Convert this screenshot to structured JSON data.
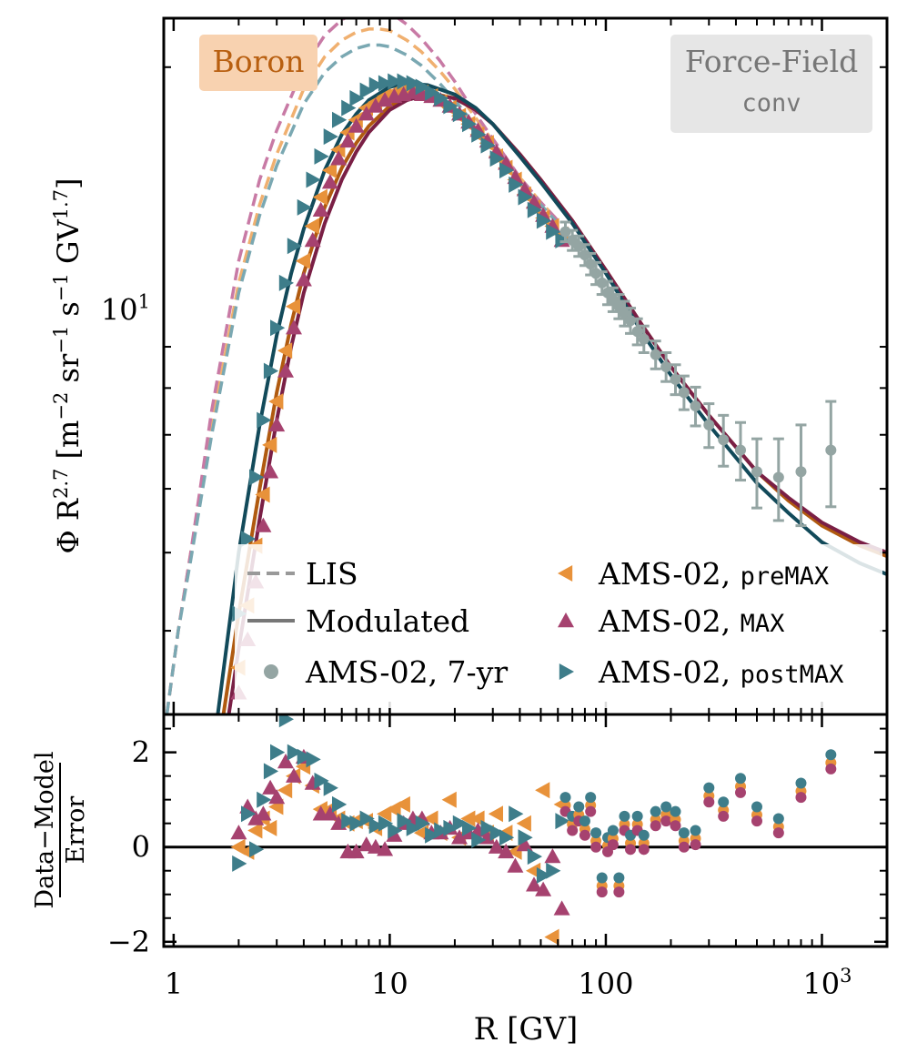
{
  "chart_data": {
    "type": "scatter",
    "element_badge": "Boron",
    "model_badge": {
      "line1": "Force-Field",
      "line2": "conv"
    },
    "xlabel": "R [GV]",
    "ylabel_top": "Φ R^2.7 [m^-2 sr^-1 s^-1 GV^1.7]",
    "ylabel_bottom": "(Data−Model)/Error",
    "xscale": "log",
    "xlim": [
      0.9,
      2000
    ],
    "top_ylim": [
      3.15,
      23.0
    ],
    "bottom_ylim": [
      -2.1,
      2.8
    ],
    "x_tick_labels": [
      {
        "value": 1,
        "label": "1"
      },
      {
        "value": 10,
        "label": "10"
      },
      {
        "value": 100,
        "label": "100"
      },
      {
        "value": 1000,
        "label": "10",
        "sup": "3"
      }
    ],
    "top_y_tick_labels": [
      {
        "value": 10,
        "label": "10",
        "sup": "1"
      }
    ],
    "bottom_y_tick_labels": [
      {
        "value": 2,
        "label": "2"
      },
      {
        "value": 0,
        "label": "0"
      },
      {
        "value": -2,
        "label": "−2"
      }
    ],
    "colors": {
      "lis_grey": "#999999",
      "model_grey": "#777777",
      "seven_year": "#94a5a3",
      "preMAX": "#e8923a",
      "MAX": "#a6426f",
      "postMAX": "#3e7d8a",
      "mod_preMAX": "#b05a10",
      "mod_MAX": "#7a1f45",
      "mod_postMAX": "#124a5a",
      "lis_preMAX": "#f0b070",
      "lis_MAX": "#c87aa5",
      "lis_postMAX": "#7aa8b2",
      "badge_boron_bg": "#f8d2b0",
      "badge_boron_text": "#b85f10",
      "badge_model_bg": "#e6e6e6",
      "badge_model_text": "#777777"
    },
    "legend": {
      "placement": "lower",
      "entries": [
        {
          "key": "lis",
          "label": "LIS"
        },
        {
          "key": "modulated",
          "label": "Modulated"
        },
        {
          "key": "seven_year",
          "label": "AMS-02, 7-yr"
        },
        {
          "key": "preMAX",
          "label": "AMS-02, ",
          "code": "preMAX"
        },
        {
          "key": "MAX",
          "label": "AMS-02, ",
          "code": "MAX"
        },
        {
          "key": "postMAX",
          "label": "AMS-02, ",
          "code": "postMAX"
        }
      ]
    },
    "lis_curves": [
      {
        "name": "LIS preMAX",
        "color_key": "lis_preMAX",
        "x": [
          0.93,
          1.05,
          1.2,
          1.5,
          2,
          2.5,
          3,
          4,
          5,
          6,
          7,
          8,
          9,
          10,
          12,
          14,
          17,
          20,
          25,
          30,
          40,
          50,
          60
        ],
        "y": [
          3.15,
          4.0,
          5.0,
          7.2,
          10.8,
          13.5,
          15.6,
          18.8,
          20.6,
          21.6,
          22.1,
          22.3,
          22.3,
          22.2,
          21.6,
          20.9,
          19.8,
          18.8,
          17.3,
          16.2,
          14.6,
          13.6,
          12.9
        ]
      },
      {
        "name": "LIS MAX",
        "color_key": "lis_MAX",
        "x": [
          0.93,
          1.05,
          1.2,
          1.5,
          2,
          2.5,
          3,
          4,
          5,
          6,
          7,
          8,
          9,
          10,
          12,
          14,
          17,
          20,
          25,
          30,
          40,
          50,
          60
        ],
        "y": [
          3.15,
          4.0,
          5.0,
          7.5,
          11.5,
          14.5,
          16.7,
          20.0,
          21.9,
          22.9,
          23.4,
          23.6,
          23.6,
          23.4,
          22.6,
          21.7,
          20.4,
          19.2,
          17.5,
          16.3,
          14.6,
          13.6,
          12.9
        ]
      },
      {
        "name": "LIS postMAX",
        "color_key": "lis_postMAX",
        "x": [
          0.93,
          1.05,
          1.2,
          1.5,
          2,
          2.5,
          3,
          4,
          5,
          6,
          7,
          8,
          9,
          10,
          12,
          14,
          17,
          20,
          25,
          30,
          40,
          50,
          60
        ],
        "y": [
          3.15,
          4.0,
          4.9,
          7.0,
          10.5,
          13.1,
          15.1,
          18.0,
          19.7,
          20.6,
          21.1,
          21.3,
          21.3,
          21.2,
          20.7,
          20.1,
          19.1,
          18.2,
          16.9,
          15.9,
          14.4,
          13.5,
          12.8
        ]
      }
    ],
    "modulated_curves": [
      {
        "name": "Modulated preMAX",
        "color_key": "mod_preMAX",
        "x": [
          1.7,
          2,
          2.5,
          3,
          3.5,
          4,
          5,
          6,
          7,
          8,
          10,
          12,
          15,
          20,
          25,
          30,
          40,
          50,
          70,
          100,
          150,
          200,
          300,
          500,
          700,
          1000,
          1500,
          2000
        ],
        "y": [
          3.15,
          4.2,
          6.0,
          7.9,
          9.6,
          11.1,
          13.4,
          15.0,
          16.1,
          16.9,
          17.9,
          18.4,
          18.6,
          18.3,
          17.7,
          17.0,
          15.6,
          14.5,
          12.9,
          11.2,
          9.5,
          8.5,
          7.4,
          6.3,
          5.8,
          5.4,
          5.1,
          4.95
        ]
      },
      {
        "name": "Modulated MAX",
        "color_key": "mod_MAX",
        "x": [
          1.8,
          2,
          2.5,
          3,
          3.5,
          4,
          5,
          6,
          7,
          8,
          10,
          12,
          15,
          20,
          25,
          30,
          40,
          50,
          70,
          100,
          150,
          200,
          300,
          500,
          700,
          1000,
          1500,
          2000
        ],
        "y": [
          3.15,
          3.8,
          5.5,
          7.3,
          9.0,
          10.5,
          12.8,
          14.5,
          15.7,
          16.6,
          17.7,
          18.2,
          18.5,
          18.3,
          17.7,
          17.0,
          15.6,
          14.5,
          12.9,
          11.2,
          9.5,
          8.5,
          7.4,
          6.3,
          5.85,
          5.45,
          5.15,
          5.0
        ]
      },
      {
        "name": "Modulated postMAX",
        "color_key": "mod_postMAX",
        "x": [
          1.6,
          2,
          2.5,
          3,
          3.5,
          4,
          5,
          6,
          7,
          8,
          10,
          12,
          15,
          20,
          25,
          30,
          40,
          50,
          70,
          100,
          150,
          200,
          300,
          500,
          700,
          1000,
          1500,
          2000
        ],
        "y": [
          3.15,
          5.0,
          7.2,
          9.3,
          11.1,
          12.6,
          14.9,
          16.5,
          17.5,
          18.2,
          18.9,
          19.1,
          19.0,
          18.5,
          17.8,
          17.0,
          15.5,
          14.4,
          12.8,
          11.1,
          9.3,
          8.3,
          7.2,
          6.1,
          5.6,
          5.15,
          4.85,
          4.7
        ]
      }
    ],
    "seven_year": {
      "x": [
        65,
        70,
        75,
        80,
        85,
        90,
        96,
        102,
        108,
        115,
        122,
        130,
        140,
        150,
        170,
        190,
        210,
        230,
        260,
        300,
        350,
        420,
        500,
        630,
        800,
        1100
      ],
      "y": [
        12.5,
        12.2,
        12.0,
        11.7,
        11.4,
        11.1,
        10.8,
        10.5,
        10.3,
        10.1,
        9.9,
        9.7,
        9.4,
        9.2,
        8.8,
        8.5,
        8.2,
        7.9,
        7.6,
        7.2,
        6.9,
        6.7,
        6.3,
        6.2,
        6.3,
        6.7
      ],
      "err": [
        0.35,
        0.35,
        0.35,
        0.35,
        0.35,
        0.35,
        0.35,
        0.35,
        0.35,
        0.35,
        0.35,
        0.35,
        0.35,
        0.35,
        0.35,
        0.35,
        0.35,
        0.38,
        0.42,
        0.45,
        0.5,
        0.55,
        0.62,
        0.72,
        0.9,
        1.0
      ],
      "residual": [
        0.8,
        0.4,
        0.6,
        0.3,
        0.8,
        0.05,
        -0.9,
        -0.05,
        0.1,
        -0.9,
        0.4,
        0.0,
        0.4,
        0.0,
        0.5,
        0.6,
        0.5,
        0.05,
        0.1,
        1.0,
        0.7,
        1.2,
        0.6,
        0.35,
        1.1,
        1.7
      ]
    },
    "preMAX": {
      "x": [
        2.0,
        2.2,
        2.4,
        2.6,
        2.8,
        3.0,
        3.3,
        3.6,
        4.0,
        4.4,
        4.8,
        5.3,
        5.8,
        6.4,
        7.0,
        7.8,
        8.6,
        9.5,
        10.5,
        11.6,
        12.8,
        14.1,
        15.6,
        17.2,
        19.0,
        21.0,
        23.2,
        25.6,
        28.3,
        31.2,
        34.5,
        38.1,
        42.1,
        46.5,
        51.3,
        56.7,
        62.6
      ],
      "y": [
        3.6,
        4.3,
        5.1,
        5.9,
        6.8,
        7.7,
        8.9,
        10.1,
        11.5,
        12.7,
        13.8,
        14.9,
        15.8,
        16.6,
        17.2,
        17.8,
        18.1,
        18.4,
        18.6,
        18.7,
        18.7,
        18.6,
        18.4,
        18.1,
        17.8,
        17.4,
        17.0,
        16.5,
        16.1,
        15.5,
        15.0,
        14.5,
        13.9,
        13.4,
        13.0,
        12.7,
        12.4
      ],
      "residual": [
        0.0,
        -0.1,
        0.35,
        0.6,
        0.4,
        0.85,
        1.2,
        1.5,
        1.7,
        1.3,
        0.8,
        0.8,
        0.6,
        0.5,
        0.55,
        0.55,
        0.4,
        0.7,
        0.8,
        0.9,
        0.5,
        0.3,
        0.6,
        0.3,
        1.0,
        0.2,
        0.6,
        0.6,
        0.3,
        0.7,
        0.3,
        -0.1,
        0.5,
        -0.5,
        1.2,
        -1.9,
        0.9
      ]
    },
    "MAX": {
      "x": [
        2.0,
        2.2,
        2.4,
        2.6,
        2.8,
        3.0,
        3.3,
        3.6,
        4.0,
        4.4,
        4.8,
        5.3,
        5.8,
        6.4,
        7.0,
        7.8,
        8.6,
        9.5,
        10.5,
        11.6,
        12.8,
        14.1,
        15.6,
        17.2,
        19.0,
        21.0,
        23.2,
        25.6,
        28.3,
        31.2,
        34.5,
        38.1,
        42.1,
        46.5,
        51.3,
        56.7,
        62.6
      ],
      "y": [
        3.35,
        3.9,
        4.6,
        5.4,
        6.3,
        7.2,
        8.4,
        9.5,
        10.9,
        12.2,
        13.3,
        14.4,
        15.4,
        16.2,
        16.9,
        17.5,
        17.9,
        18.2,
        18.4,
        18.5,
        18.6,
        18.5,
        18.4,
        18.2,
        17.9,
        17.5,
        17.1,
        16.7,
        16.2,
        15.7,
        15.2,
        14.6,
        14.1,
        13.6,
        13.1,
        12.7,
        12.2
      ],
      "residual": [
        0.3,
        0.85,
        0.6,
        0.7,
        1.25,
        1.05,
        1.8,
        1.5,
        1.9,
        1.35,
        0.7,
        0.7,
        0.5,
        -0.1,
        -0.1,
        0.05,
        0.0,
        -0.05,
        0.25,
        0.5,
        0.6,
        0.6,
        0.3,
        0.3,
        0.4,
        0.2,
        0.3,
        0.35,
        0.2,
        0.0,
        -0.1,
        -0.4,
        0.05,
        -0.8,
        -0.9,
        -0.2,
        -1.3
      ]
    },
    "postMAX": {
      "x": [
        2.0,
        2.2,
        2.4,
        2.6,
        2.8,
        3.0,
        3.3,
        3.6,
        4.0,
        4.4,
        4.8,
        5.3,
        5.8,
        6.4,
        7.0,
        7.8,
        8.6,
        9.5,
        10.5,
        11.6,
        12.8,
        14.1,
        15.6,
        17.2,
        19.0,
        21.0,
        23.2,
        25.6,
        28.3,
        31.2,
        34.5,
        38.1,
        42.1,
        46.5,
        51.3,
        56.7,
        62.6
      ],
      "y": [
        4.2,
        5.2,
        6.2,
        7.3,
        8.4,
        9.5,
        10.8,
        12.0,
        13.4,
        14.5,
        15.5,
        16.4,
        17.2,
        17.8,
        18.3,
        18.7,
        19.0,
        19.1,
        19.2,
        19.2,
        19.1,
        18.9,
        18.6,
        18.3,
        17.9,
        17.5,
        17.0,
        16.5,
        16.0,
        15.4,
        14.9,
        14.3,
        13.8,
        13.3,
        12.9,
        12.5,
        12.2
      ],
      "residual": [
        -0.35,
        0.7,
        -0.05,
        1.0,
        1.6,
        2.0,
        2.7,
        2.0,
        1.9,
        1.85,
        1.4,
        1.25,
        0.9,
        0.55,
        0.5,
        0.6,
        0.45,
        0.5,
        0.35,
        0.55,
        0.4,
        0.5,
        0.25,
        0.35,
        0.4,
        0.5,
        0.4,
        0.15,
        0.4,
        0.3,
        0.2,
        0.7,
        0.2,
        -0.2,
        -0.6,
        -0.5,
        0.55
      ]
    }
  }
}
